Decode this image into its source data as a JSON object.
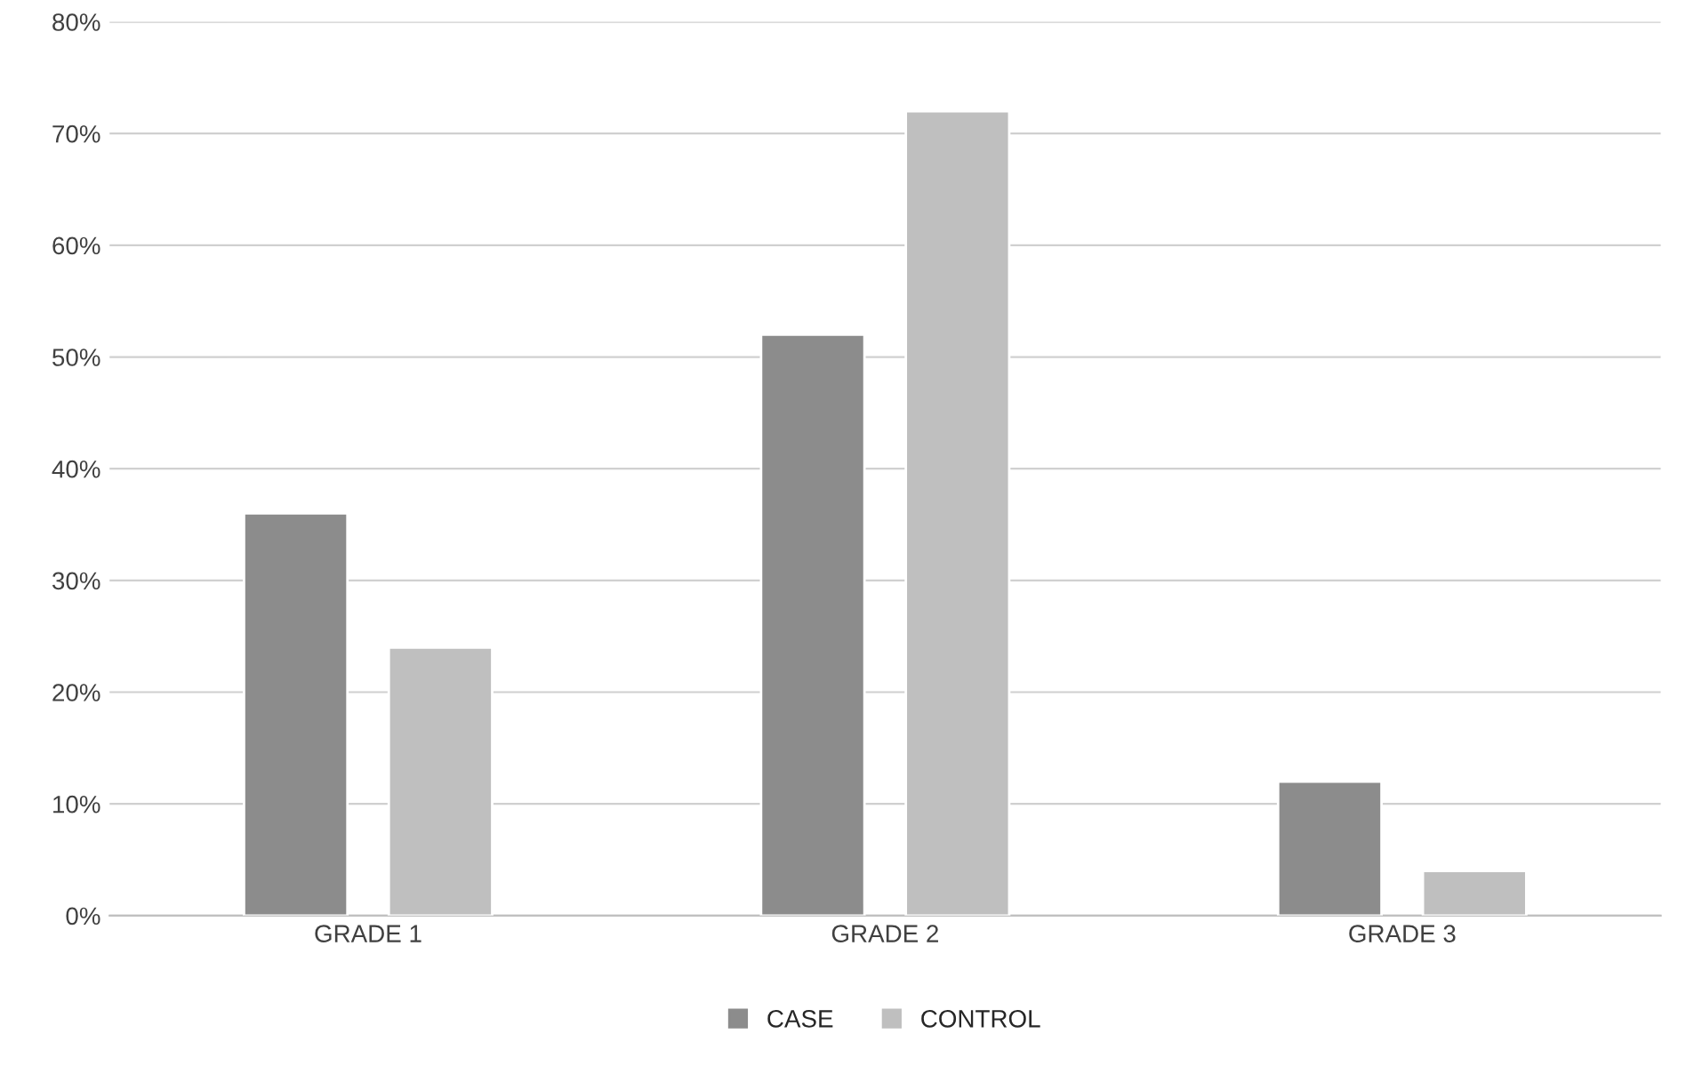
{
  "chart_data": {
    "type": "bar",
    "categories": [
      "GRADE 1",
      "GRADE 2",
      "GRADE 3"
    ],
    "series": [
      {
        "name": "CASE",
        "color": "#8c8c8c",
        "values": [
          36,
          52,
          12
        ]
      },
      {
        "name": "CONTROL",
        "color": "#bfbfbf",
        "values": [
          24,
          72,
          4
        ]
      }
    ],
    "ylim": [
      0,
      80
    ],
    "yticks": [
      {
        "value": 0,
        "label": "0%"
      },
      {
        "value": 10,
        "label": "10%"
      },
      {
        "value": 20,
        "label": "20%"
      },
      {
        "value": 30,
        "label": "30%"
      },
      {
        "value": 40,
        "label": "40%"
      },
      {
        "value": 50,
        "label": "50%"
      },
      {
        "value": 60,
        "label": "60%"
      },
      {
        "value": 70,
        "label": "70%"
      },
      {
        "value": 80,
        "label": "80%"
      }
    ],
    "grid": "y",
    "legend": "bottom"
  }
}
